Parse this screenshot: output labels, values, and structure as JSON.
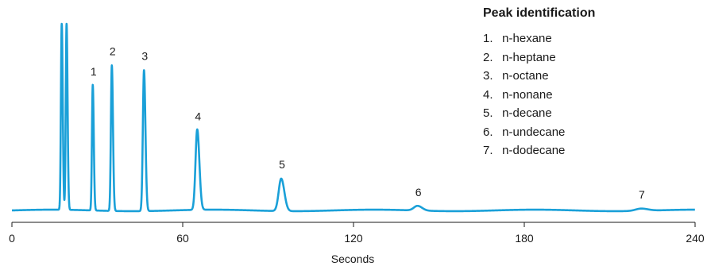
{
  "chart_data": {
    "type": "line",
    "xlabel": "Seconds",
    "ylabel": "",
    "xlim": [
      0,
      240
    ],
    "ylim": [
      0,
      1.0
    ],
    "xticks": [
      "0",
      "60",
      "120",
      "180",
      "240"
    ],
    "xtick_values": [
      0,
      60,
      120,
      180,
      240
    ],
    "grid": false,
    "color": "#1aa0d8",
    "baseline": 0.0,
    "solvent_peaks": [
      {
        "x": 17.5,
        "height": 1.0,
        "width": 0.35
      },
      {
        "x": 19.2,
        "height": 1.0,
        "width": 0.35
      }
    ],
    "peaks": [
      {
        "label": "1",
        "x": 28.4,
        "height": 0.673,
        "width": 0.35
      },
      {
        "label": "2",
        "x": 35.1,
        "height": 0.78,
        "width": 0.4
      },
      {
        "label": "3",
        "x": 46.4,
        "height": 0.755,
        "width": 0.5
      },
      {
        "label": "4",
        "x": 65.1,
        "height": 0.431,
        "width": 0.75
      },
      {
        "label": "5",
        "x": 94.6,
        "height": 0.174,
        "width": 1.1
      },
      {
        "label": "6",
        "x": 142.5,
        "height": 0.025,
        "width": 1.6
      },
      {
        "label": "7",
        "x": 221.0,
        "height": 0.012,
        "width": 2.4
      }
    ],
    "legend_title": "Peak identification",
    "legend_entries": [
      {
        "num": "1.",
        "name": "n-hexane"
      },
      {
        "num": "2.",
        "name": "n-heptane"
      },
      {
        "num": "3.",
        "name": "n-octane"
      },
      {
        "num": "4.",
        "name": "n-nonane"
      },
      {
        "num": "5.",
        "name": "n-decane"
      },
      {
        "num": "6.",
        "name": "n-undecane"
      },
      {
        "num": "7.",
        "name": "n-dodecane"
      }
    ],
    "legend_placement": "top-right"
  }
}
